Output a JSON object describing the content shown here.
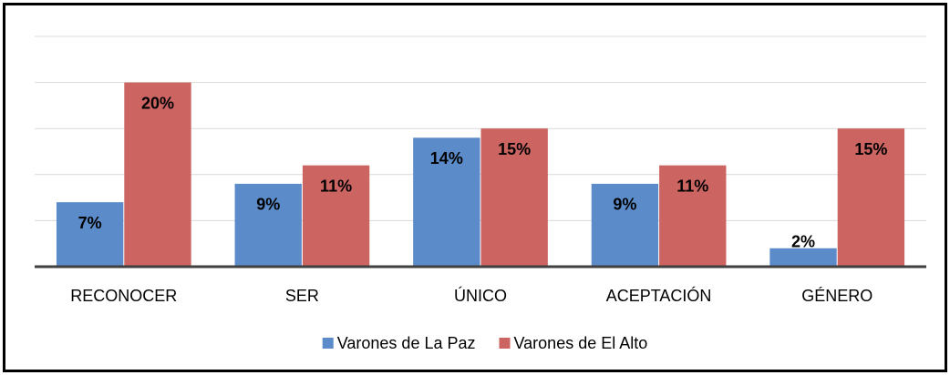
{
  "chart_data": {
    "type": "bar",
    "categories": [
      "RECONOCER",
      "SER",
      "ÚNICO",
      "ACEPTACIÓN",
      "GÉNERO"
    ],
    "series": [
      {
        "name": "Varones de La Paz",
        "color": "#5b8bc9",
        "values": [
          7,
          9,
          14,
          9,
          2
        ],
        "value_labels": [
          "7%",
          "9%",
          "14%",
          "9%",
          "2%"
        ]
      },
      {
        "name": "Varones de El Alto",
        "color": "#cc6461",
        "values": [
          20,
          11,
          15,
          11,
          15
        ],
        "value_labels": [
          "20%",
          "11%",
          "15%",
          "11%",
          "15%"
        ]
      }
    ],
    "ylim": [
      0,
      25
    ],
    "yticks": [
      0,
      5,
      10,
      15,
      20,
      25
    ],
    "grid": true,
    "legend": "bottom"
  }
}
